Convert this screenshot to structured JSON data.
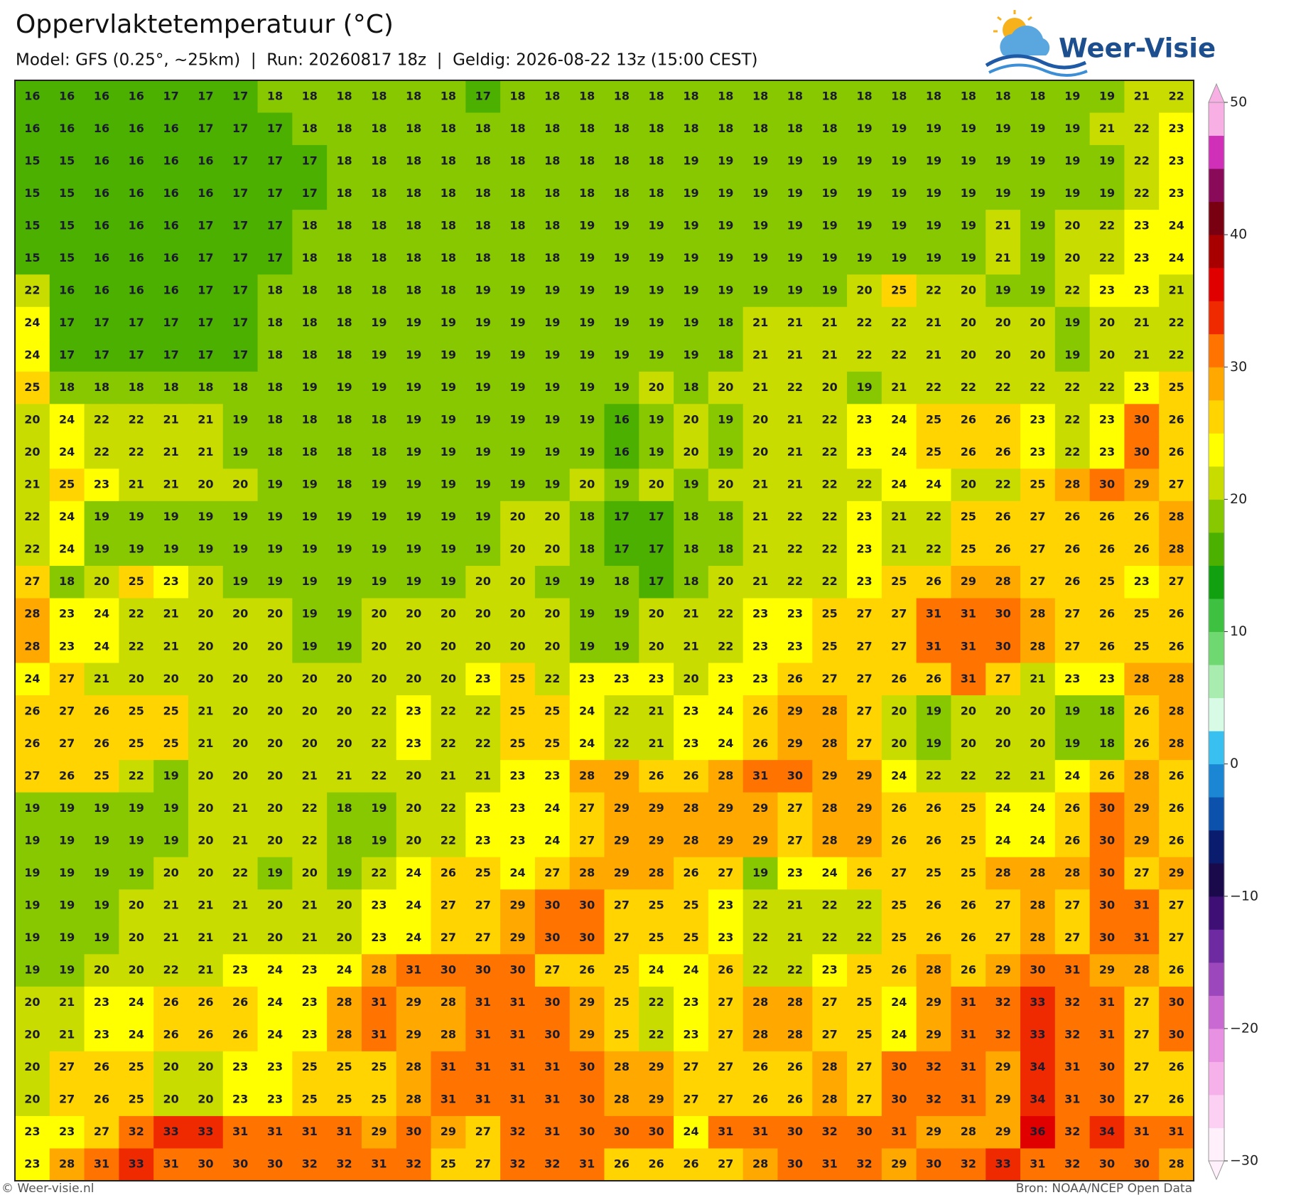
{
  "header": {
    "title": "Oppervlaktetemperatuur (°C)",
    "subtitle": "Model: GFS (0.25°, ~25km)  |  Run: 20260817 18z  |  Geldig: 2026-08-22 13z (15:00 CEST)",
    "logo": "Weer-Visie"
  },
  "grid": {
    "rows": [
      [
        16,
        16,
        16,
        16,
        17,
        17,
        17,
        18,
        18,
        18,
        18,
        18,
        18,
        17,
        18,
        18,
        18,
        18,
        18,
        18,
        18,
        18,
        18,
        18,
        18,
        18,
        18,
        18,
        18,
        18,
        19,
        19,
        21,
        22
      ],
      [
        16,
        16,
        16,
        16,
        16,
        17,
        17,
        17,
        18,
        18,
        18,
        18,
        18,
        18,
        18,
        18,
        18,
        18,
        18,
        18,
        18,
        18,
        18,
        18,
        19,
        19,
        19,
        19,
        19,
        19,
        19,
        21,
        22,
        23
      ],
      [
        15,
        15,
        16,
        16,
        16,
        16,
        17,
        17,
        17,
        18,
        18,
        18,
        18,
        18,
        18,
        18,
        18,
        18,
        18,
        19,
        19,
        19,
        19,
        19,
        19,
        19,
        19,
        19,
        19,
        19,
        19,
        19,
        22,
        23
      ],
      [
        15,
        15,
        16,
        16,
        16,
        16,
        17,
        17,
        17,
        18,
        18,
        18,
        18,
        18,
        18,
        18,
        18,
        18,
        18,
        19,
        19,
        19,
        19,
        19,
        19,
        19,
        19,
        19,
        19,
        19,
        19,
        19,
        22,
        23
      ],
      [
        15,
        15,
        16,
        16,
        16,
        17,
        17,
        17,
        18,
        18,
        18,
        18,
        18,
        18,
        18,
        18,
        19,
        19,
        19,
        19,
        19,
        19,
        19,
        19,
        19,
        19,
        19,
        19,
        21,
        19,
        20,
        22,
        23,
        24
      ],
      [
        15,
        15,
        16,
        16,
        16,
        17,
        17,
        17,
        18,
        18,
        18,
        18,
        18,
        18,
        18,
        18,
        19,
        19,
        19,
        19,
        19,
        19,
        19,
        19,
        19,
        19,
        19,
        19,
        21,
        19,
        20,
        22,
        23,
        24
      ],
      [
        22,
        16,
        16,
        16,
        16,
        17,
        17,
        18,
        18,
        18,
        18,
        18,
        18,
        19,
        19,
        19,
        19,
        19,
        19,
        19,
        19,
        19,
        19,
        19,
        20,
        25,
        22,
        20,
        19,
        19,
        22,
        23,
        23,
        21
      ],
      [
        24,
        17,
        17,
        17,
        17,
        17,
        17,
        18,
        18,
        18,
        19,
        19,
        19,
        19,
        19,
        19,
        19,
        19,
        19,
        19,
        18,
        21,
        21,
        21,
        22,
        22,
        21,
        20,
        20,
        20,
        19,
        20,
        21,
        22
      ],
      [
        24,
        17,
        17,
        17,
        17,
        17,
        17,
        18,
        18,
        18,
        19,
        19,
        19,
        19,
        19,
        19,
        19,
        19,
        19,
        19,
        18,
        21,
        21,
        21,
        22,
        22,
        21,
        20,
        20,
        20,
        19,
        20,
        21,
        22
      ],
      [
        25,
        18,
        18,
        18,
        18,
        18,
        18,
        18,
        19,
        19,
        19,
        19,
        19,
        19,
        19,
        19,
        19,
        19,
        20,
        18,
        20,
        21,
        22,
        20,
        19,
        21,
        22,
        22,
        22,
        22,
        22,
        22,
        23,
        25
      ],
      [
        20,
        24,
        22,
        22,
        21,
        21,
        19,
        18,
        18,
        18,
        18,
        19,
        19,
        19,
        19,
        19,
        19,
        16,
        19,
        20,
        19,
        20,
        21,
        22,
        23,
        24,
        25,
        26,
        26,
        23,
        22,
        23,
        30,
        26
      ],
      [
        20,
        24,
        22,
        22,
        21,
        21,
        19,
        18,
        18,
        18,
        18,
        19,
        19,
        19,
        19,
        19,
        19,
        16,
        19,
        20,
        19,
        20,
        21,
        22,
        23,
        24,
        25,
        26,
        26,
        23,
        22,
        23,
        30,
        26
      ],
      [
        21,
        25,
        23,
        21,
        21,
        20,
        20,
        19,
        19,
        18,
        19,
        19,
        19,
        19,
        19,
        19,
        20,
        19,
        20,
        19,
        20,
        21,
        21,
        22,
        22,
        24,
        24,
        20,
        22,
        25,
        28,
        30,
        29,
        27
      ],
      [
        22,
        24,
        19,
        19,
        19,
        19,
        19,
        19,
        19,
        19,
        19,
        19,
        19,
        19,
        20,
        20,
        18,
        17,
        17,
        18,
        18,
        21,
        22,
        22,
        23,
        21,
        22,
        25,
        26,
        27,
        26,
        26,
        26,
        28
      ],
      [
        22,
        24,
        19,
        19,
        19,
        19,
        19,
        19,
        19,
        19,
        19,
        19,
        19,
        19,
        20,
        20,
        18,
        17,
        17,
        18,
        18,
        21,
        22,
        22,
        23,
        21,
        22,
        25,
        26,
        27,
        26,
        26,
        26,
        28
      ],
      [
        27,
        18,
        20,
        25,
        23,
        20,
        19,
        19,
        19,
        19,
        19,
        19,
        19,
        20,
        20,
        19,
        19,
        18,
        17,
        18,
        20,
        21,
        22,
        22,
        23,
        25,
        26,
        29,
        28,
        27,
        26,
        25,
        23,
        27
      ],
      [
        28,
        23,
        24,
        22,
        21,
        20,
        20,
        20,
        19,
        19,
        20,
        20,
        20,
        20,
        20,
        20,
        19,
        19,
        20,
        21,
        22,
        23,
        23,
        25,
        27,
        27,
        31,
        31,
        30,
        28,
        27,
        26,
        25,
        26
      ],
      [
        28,
        23,
        24,
        22,
        21,
        20,
        20,
        20,
        19,
        19,
        20,
        20,
        20,
        20,
        20,
        20,
        19,
        19,
        20,
        21,
        22,
        23,
        23,
        25,
        27,
        27,
        31,
        31,
        30,
        28,
        27,
        26,
        25,
        26
      ],
      [
        24,
        27,
        21,
        20,
        20,
        20,
        20,
        20,
        20,
        20,
        20,
        20,
        20,
        23,
        25,
        22,
        23,
        23,
        23,
        20,
        23,
        23,
        26,
        27,
        27,
        26,
        26,
        31,
        27,
        21,
        23,
        23,
        28,
        28
      ],
      [
        26,
        27,
        26,
        25,
        25,
        21,
        20,
        20,
        20,
        20,
        22,
        23,
        22,
        22,
        25,
        25,
        24,
        22,
        21,
        23,
        24,
        26,
        29,
        28,
        27,
        20,
        19,
        20,
        20,
        20,
        19,
        18,
        26,
        28
      ],
      [
        26,
        27,
        26,
        25,
        25,
        21,
        20,
        20,
        20,
        20,
        22,
        23,
        22,
        22,
        25,
        25,
        24,
        22,
        21,
        23,
        24,
        26,
        29,
        28,
        27,
        20,
        19,
        20,
        20,
        20,
        19,
        18,
        26,
        28
      ],
      [
        27,
        26,
        25,
        22,
        19,
        20,
        20,
        20,
        21,
        21,
        22,
        20,
        21,
        21,
        23,
        23,
        28,
        29,
        26,
        26,
        28,
        31,
        30,
        29,
        29,
        24,
        22,
        22,
        22,
        21,
        24,
        26,
        28,
        26
      ],
      [
        19,
        19,
        19,
        19,
        19,
        20,
        21,
        20,
        22,
        18,
        19,
        20,
        22,
        23,
        23,
        24,
        27,
        29,
        29,
        28,
        29,
        29,
        27,
        28,
        29,
        26,
        26,
        25,
        24,
        24,
        26,
        30,
        29,
        26
      ],
      [
        19,
        19,
        19,
        19,
        19,
        20,
        21,
        20,
        22,
        18,
        19,
        20,
        22,
        23,
        23,
        24,
        27,
        29,
        29,
        28,
        29,
        29,
        27,
        28,
        29,
        26,
        26,
        25,
        24,
        24,
        26,
        30,
        29,
        26
      ],
      [
        19,
        19,
        19,
        19,
        20,
        20,
        22,
        19,
        20,
        19,
        22,
        24,
        26,
        25,
        24,
        27,
        28,
        29,
        28,
        26,
        27,
        19,
        23,
        24,
        26,
        27,
        25,
        25,
        28,
        28,
        28,
        30,
        27,
        29
      ],
      [
        19,
        19,
        19,
        20,
        21,
        21,
        21,
        20,
        21,
        20,
        23,
        24,
        27,
        27,
        29,
        30,
        30,
        27,
        25,
        25,
        23,
        22,
        21,
        22,
        22,
        25,
        26,
        26,
        27,
        28,
        27,
        30,
        31,
        27
      ],
      [
        19,
        19,
        19,
        20,
        21,
        21,
        21,
        20,
        21,
        20,
        23,
        24,
        27,
        27,
        29,
        30,
        30,
        27,
        25,
        25,
        23,
        22,
        21,
        22,
        22,
        25,
        26,
        26,
        27,
        28,
        27,
        30,
        31,
        27
      ],
      [
        19,
        19,
        20,
        20,
        22,
        21,
        23,
        24,
        23,
        24,
        28,
        31,
        30,
        30,
        30,
        27,
        26,
        25,
        24,
        24,
        26,
        22,
        22,
        23,
        25,
        26,
        28,
        26,
        29,
        30,
        31,
        29,
        28,
        26
      ],
      [
        20,
        21,
        23,
        24,
        26,
        26,
        26,
        24,
        23,
        28,
        31,
        29,
        28,
        31,
        31,
        30,
        29,
        25,
        22,
        23,
        27,
        28,
        28,
        27,
        25,
        24,
        29,
        31,
        32,
        33,
        32,
        31,
        27,
        30
      ],
      [
        20,
        21,
        23,
        24,
        26,
        26,
        26,
        24,
        23,
        28,
        31,
        29,
        28,
        31,
        31,
        30,
        29,
        25,
        22,
        23,
        27,
        28,
        28,
        27,
        25,
        24,
        29,
        31,
        32,
        33,
        32,
        31,
        27,
        30
      ],
      [
        20,
        27,
        26,
        25,
        20,
        20,
        23,
        23,
        25,
        25,
        25,
        28,
        31,
        31,
        31,
        31,
        30,
        28,
        29,
        27,
        27,
        26,
        26,
        28,
        27,
        30,
        32,
        31,
        29,
        34,
        31,
        30,
        27,
        26
      ],
      [
        20,
        27,
        26,
        25,
        20,
        20,
        23,
        23,
        25,
        25,
        25,
        28,
        31,
        31,
        31,
        31,
        30,
        28,
        29,
        27,
        27,
        26,
        26,
        28,
        27,
        30,
        32,
        31,
        29,
        34,
        31,
        30,
        27,
        26
      ],
      [
        23,
        23,
        27,
        32,
        33,
        33,
        31,
        31,
        31,
        31,
        29,
        30,
        29,
        27,
        32,
        31,
        30,
        30,
        30,
        24,
        31,
        31,
        30,
        32,
        30,
        31,
        29,
        28,
        29,
        36,
        32,
        34,
        31,
        31
      ],
      [
        23,
        28,
        31,
        33,
        31,
        30,
        30,
        30,
        32,
        32,
        31,
        32,
        25,
        27,
        32,
        32,
        31,
        26,
        26,
        26,
        27,
        28,
        30,
        31,
        32,
        29,
        30,
        32,
        33,
        31,
        32,
        30,
        30,
        28
      ]
    ]
  },
  "colorbar": {
    "lim": [
      -30,
      50
    ],
    "ticks": [
      50,
      40,
      30,
      20,
      10,
      0,
      {
        "value": -10,
        "label": "−10"
      },
      {
        "value": -20,
        "label": "−20"
      },
      {
        "value": -30,
        "label": "−30"
      }
    ],
    "colors": [
      "#fff0fb",
      "#fcd0f2",
      "#f6b0ea",
      "#e890e2",
      "#c86ad2",
      "#9c48bc",
      "#6e2aa0",
      "#3e0f74",
      "#1a0a4c",
      "#0a1c6e",
      "#0c52ac",
      "#1a86d4",
      "#38c0f0",
      "#d8fbe6",
      "#a8ecb0",
      "#70d870",
      "#3ec040",
      "#10a010",
      "#4cb000",
      "#88c800",
      "#c8dc00",
      "#ffff00",
      "#ffd400",
      "#ffa800",
      "#ff7400",
      "#f02a00",
      "#e00000",
      "#a80000",
      "#780010",
      "#8a0a5a",
      "#d030b8",
      "#f8b0e4"
    ]
  },
  "footer": {
    "left": "© Weer-visie.nl",
    "right": "Bron: NOAA/NCEP Open Data"
  }
}
